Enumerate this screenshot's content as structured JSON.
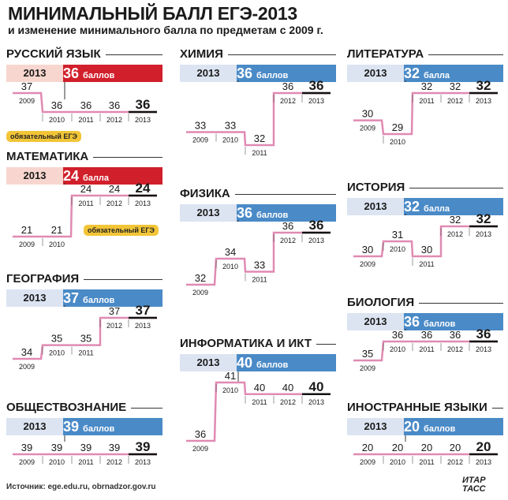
{
  "title": "МИНИМАЛЬНЫЙ БАЛЛ ЕГЭ-2013",
  "subtitle": "и изменение минимального балла по предметам с 2009 г.",
  "source": "Источник: ege.edu.ru, obrnadzor.gov.ru",
  "logo": [
    "ИТАР",
    "ТАСС"
  ],
  "mandatory_label": "обязательный ЕГЭ",
  "colors": {
    "red": "#d11f2b",
    "red_light": "#f7d6cf",
    "blue": "#4a8ac7",
    "blue_light": "#dce4f2",
    "step_line": "#e08ab2",
    "badge": "#f2c537"
  },
  "chart_data": [
    {
      "type": "line",
      "title": "РУССКИЙ ЯЗЫК",
      "year_label": "2013",
      "value_label": "36",
      "unit": "баллов",
      "mandatory": true,
      "x": [
        "2009",
        "2010",
        "2011",
        "2012",
        "2013"
      ],
      "values": [
        37,
        36,
        36,
        36,
        36
      ]
    },
    {
      "type": "line",
      "title": "МАТЕМАТИКА",
      "year_label": "2013",
      "value_label": "24",
      "unit": "балла",
      "mandatory": true,
      "x": [
        "2009",
        "2010",
        "2011",
        "2012",
        "2013"
      ],
      "values": [
        21,
        21,
        24,
        24,
        24
      ]
    },
    {
      "type": "line",
      "title": "ГЕОГРАФИЯ",
      "year_label": "2013",
      "value_label": "37",
      "unit": "баллов",
      "mandatory": false,
      "x": [
        "2009",
        "2010",
        "2011",
        "2012",
        "2013"
      ],
      "values": [
        34,
        35,
        35,
        37,
        37
      ]
    },
    {
      "type": "line",
      "title": "ОБЩЕСТВОЗНАНИЕ",
      "year_label": "2013",
      "value_label": "39",
      "unit": "баллов",
      "mandatory": false,
      "x": [
        "2009",
        "2010",
        "2011",
        "2012",
        "2013"
      ],
      "values": [
        39,
        39,
        39,
        39,
        39
      ]
    },
    {
      "type": "line",
      "title": "ХИМИЯ",
      "year_label": "2013",
      "value_label": "36",
      "unit": "баллов",
      "mandatory": false,
      "x": [
        "2009",
        "2010",
        "2011",
        "2012",
        "2013"
      ],
      "values": [
        33,
        33,
        32,
        36,
        36
      ]
    },
    {
      "type": "line",
      "title": "ФИЗИКА",
      "year_label": "2013",
      "value_label": "36",
      "unit": "баллов",
      "mandatory": false,
      "x": [
        "2009",
        "2010",
        "2011",
        "2012",
        "2013"
      ],
      "values": [
        32,
        34,
        33,
        36,
        36
      ]
    },
    {
      "type": "line",
      "title": "ИНФОРМАТИКА И ИКТ",
      "year_label": "2013",
      "value_label": "40",
      "unit": "баллов",
      "mandatory": false,
      "x": [
        "2009",
        "2010",
        "2011",
        "2012",
        "2013"
      ],
      "values": [
        36,
        41,
        40,
        40,
        40
      ]
    },
    {
      "type": "line",
      "title": "ЛИТЕРАТУРА",
      "year_label": "2013",
      "value_label": "32",
      "unit": "балла",
      "mandatory": false,
      "x": [
        "2009",
        "2010",
        "2011",
        "2012",
        "2013"
      ],
      "values": [
        30,
        29,
        32,
        32,
        32
      ]
    },
    {
      "type": "line",
      "title": "ИСТОРИЯ",
      "year_label": "2013",
      "value_label": "32",
      "unit": "балла",
      "mandatory": false,
      "x": [
        "2009",
        "2010",
        "2011",
        "2012",
        "2013"
      ],
      "values": [
        30,
        31,
        30,
        32,
        32
      ]
    },
    {
      "type": "line",
      "title": "БИОЛОГИЯ",
      "year_label": "2013",
      "value_label": "36",
      "unit": "баллов",
      "mandatory": false,
      "x": [
        "2009",
        "2010",
        "2011",
        "2012",
        "2013"
      ],
      "values": [
        35,
        36,
        36,
        36,
        36
      ]
    },
    {
      "type": "line",
      "title": "ИНОСТРАННЫЕ ЯЗЫКИ",
      "year_label": "2013",
      "value_label": "20",
      "unit": "баллов",
      "mandatory": false,
      "x": [
        "2009",
        "2010",
        "2011",
        "2012",
        "2013"
      ],
      "values": [
        20,
        20,
        20,
        20,
        20
      ]
    }
  ]
}
